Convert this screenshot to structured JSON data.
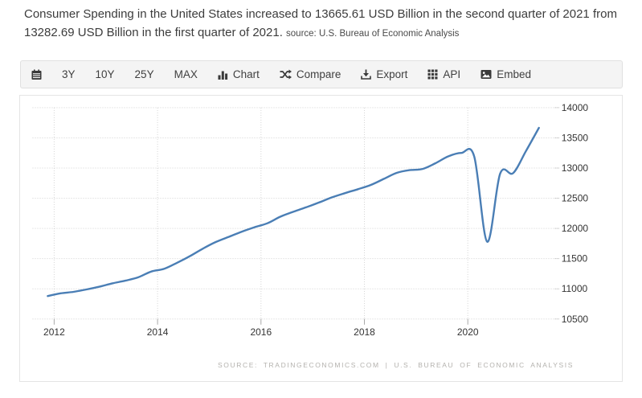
{
  "header": {
    "summary": "Consumer Spending in the United States increased to 13665.61 USD Billion in the second quarter of 2021 from 13282.69 USD Billion in the first quarter of 2021.",
    "source_label": "source: U.S. Bureau of Economic Analysis"
  },
  "toolbar": {
    "items": [
      {
        "name": "calendar",
        "icon": "calendar-icon",
        "label": ""
      },
      {
        "name": "range-3y",
        "icon": "",
        "label": "3Y"
      },
      {
        "name": "range-10y",
        "icon": "",
        "label": "10Y"
      },
      {
        "name": "range-25y",
        "icon": "",
        "label": "25Y"
      },
      {
        "name": "range-max",
        "icon": "",
        "label": "MAX"
      },
      {
        "name": "chart-type",
        "icon": "bar-chart-icon",
        "label": "Chart"
      },
      {
        "name": "compare",
        "icon": "shuffle-icon",
        "label": "Compare"
      },
      {
        "name": "export",
        "icon": "download-icon",
        "label": "Export"
      },
      {
        "name": "api",
        "icon": "grid-icon",
        "label": "API"
      },
      {
        "name": "embed",
        "icon": "image-icon",
        "label": "Embed"
      }
    ]
  },
  "chart_data": {
    "type": "line",
    "title": "Consumer Spending in the United States (USD Billion)",
    "x": [
      "2011 Q4",
      "2012 Q1",
      "2012 Q2",
      "2012 Q3",
      "2012 Q4",
      "2013 Q1",
      "2013 Q2",
      "2013 Q3",
      "2013 Q4",
      "2014 Q1",
      "2014 Q2",
      "2014 Q3",
      "2014 Q4",
      "2015 Q1",
      "2015 Q2",
      "2015 Q3",
      "2015 Q4",
      "2016 Q1",
      "2016 Q2",
      "2016 Q3",
      "2016 Q4",
      "2017 Q1",
      "2017 Q2",
      "2017 Q3",
      "2017 Q4",
      "2018 Q1",
      "2018 Q2",
      "2018 Q3",
      "2018 Q4",
      "2019 Q1",
      "2019 Q2",
      "2019 Q3",
      "2019 Q4",
      "2020 Q1",
      "2020 Q2",
      "2020 Q3",
      "2020 Q4",
      "2021 Q1",
      "2021 Q2"
    ],
    "values": [
      10880,
      10925,
      10950,
      10990,
      11035,
      11090,
      11135,
      11190,
      11285,
      11330,
      11430,
      11540,
      11665,
      11775,
      11860,
      11945,
      12020,
      12085,
      12195,
      12275,
      12350,
      12430,
      12515,
      12585,
      12650,
      12720,
      12820,
      12920,
      12965,
      12985,
      13080,
      13195,
      13250,
      13190,
      11780,
      12905,
      12915,
      13282.69,
      13665.61
    ],
    "ylabel": "",
    "xlabel": "",
    "ylim": [
      10500,
      14000
    ],
    "y_ticks": [
      10500,
      11000,
      11500,
      12000,
      12500,
      13000,
      13500,
      14000
    ],
    "x_ticks": [
      2012,
      2014,
      2016,
      2018,
      2020
    ],
    "x_start": 2011.875,
    "x_step": 0.25,
    "grid": "dotted",
    "legend": "none",
    "line_color": "#4a7eb5",
    "grid_color": "#d2d2d2",
    "tick_color": "#a9a9a9",
    "axis_label_color": "#333333"
  },
  "footer": {
    "source_text": "SOURCE: TRADINGECONOMICS.COM | U.S. BUREAU OF ECONOMIC ANALYSIS"
  }
}
